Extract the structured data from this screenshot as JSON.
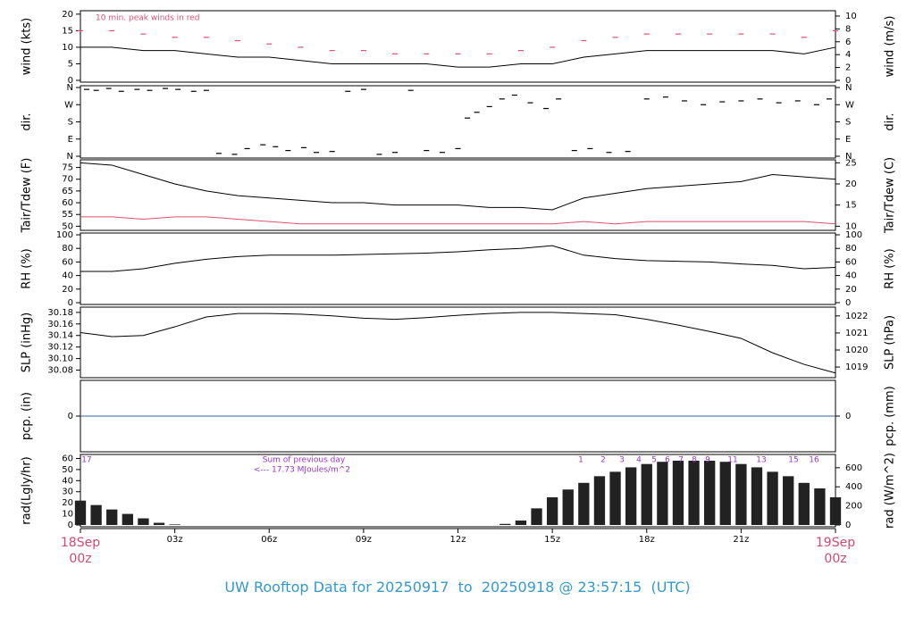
{
  "page_title": "UW Rooftop Data for 20250917  to  20250918 @ 23:57:15  (UTC)",
  "chart_data": [
    {
      "type": "line",
      "y_label": "wind (kts)",
      "y2_label": "wind (m/s)",
      "annotation": "10 min. peak winds in red",
      "ylim": [
        0,
        20.5
      ],
      "yticks": [
        0,
        5,
        10,
        15,
        20
      ],
      "y2lim": [
        0,
        10.55
      ],
      "y2ticks": [
        0,
        2,
        4,
        6,
        8,
        10
      ],
      "x": [
        0,
        1,
        2,
        3,
        4,
        5,
        6,
        7,
        8,
        9,
        10,
        11,
        12,
        13,
        14,
        15,
        16,
        17,
        18,
        19,
        20,
        21,
        22,
        23,
        24
      ],
      "series": [
        {
          "color": "#000000",
          "style": "line",
          "values": [
            10,
            10,
            9,
            9,
            8,
            7,
            7,
            6,
            5,
            5,
            5,
            5,
            4,
            4,
            5,
            5,
            7,
            8,
            9,
            9,
            9,
            9,
            9,
            8,
            10
          ]
        },
        {
          "color": "#e0506e",
          "style": "dash",
          "values": [
            15,
            15,
            14,
            13,
            13,
            12,
            11,
            10,
            9,
            9,
            8,
            8,
            8,
            8,
            9,
            10,
            12,
            13,
            14,
            14,
            14,
            14,
            14,
            13,
            15
          ]
        }
      ]
    },
    {
      "type": "scatter",
      "y_label": "dir.",
      "y2_label": "dir.",
      "ylim": [
        0,
        360
      ],
      "yticks": [
        {
          "value": 0,
          "label": "N"
        },
        {
          "value": 90,
          "label": "E"
        },
        {
          "value": 180,
          "label": "S"
        },
        {
          "value": 270,
          "label": "W"
        },
        {
          "value": 360,
          "label": "N"
        }
      ],
      "y2lim": [
        0,
        360
      ],
      "y2ticks": [
        {
          "value": 0,
          "label": "N"
        },
        {
          "value": 90,
          "label": "E"
        },
        {
          "value": 180,
          "label": "S"
        },
        {
          "value": 270,
          "label": "W"
        },
        {
          "value": 360,
          "label": "N"
        }
      ],
      "x": [
        0.2,
        0.5,
        0.9,
        1.3,
        1.8,
        2.2,
        2.7,
        3.1,
        3.6,
        4.0,
        4.4,
        4.9,
        5.3,
        5.8,
        6.2,
        6.6,
        7.1,
        7.5,
        8.0,
        8.5,
        9.0,
        9.5,
        10.0,
        10.5,
        11.0,
        11.5,
        12.0,
        12.3,
        12.6,
        13.0,
        13.4,
        13.8,
        14.3,
        14.8,
        15.2,
        15.7,
        16.2,
        16.8,
        17.4,
        18.0,
        18.6,
        19.2,
        19.8,
        20.4,
        21.0,
        21.6,
        22.2,
        22.8,
        23.4,
        23.8
      ],
      "series": [
        {
          "color": "#000000",
          "values": [
            350,
            345,
            355,
            340,
            350,
            345,
            355,
            350,
            340,
            345,
            15,
            10,
            40,
            60,
            50,
            30,
            45,
            20,
            25,
            340,
            350,
            10,
            20,
            345,
            30,
            20,
            40,
            200,
            230,
            260,
            300,
            320,
            280,
            250,
            300,
            30,
            40,
            20,
            25,
            300,
            310,
            290,
            270,
            285,
            290,
            300,
            280,
            290,
            270,
            300
          ]
        }
      ]
    },
    {
      "type": "line",
      "y_label": "Tair/Tdew (F)",
      "y2_label": "Tair/Tdew (C)",
      "ylim": [
        49,
        77.5
      ],
      "yticks": [
        50,
        55,
        60,
        65,
        70,
        75
      ],
      "y2lim": [
        9.44,
        25.28
      ],
      "y2ticks": [
        10,
        15,
        20,
        25
      ],
      "x": [
        0,
        1,
        2,
        3,
        4,
        5,
        6,
        7,
        8,
        9,
        10,
        11,
        12,
        13,
        14,
        15,
        16,
        17,
        18,
        19,
        20,
        21,
        22,
        23,
        24
      ],
      "series": [
        {
          "color": "#000000",
          "style": "line",
          "values": [
            77,
            76,
            72,
            68,
            65,
            63,
            62,
            61,
            60,
            60,
            59,
            59,
            59,
            58,
            58,
            57,
            62,
            64,
            66,
            67,
            68,
            69,
            72,
            71,
            70
          ]
        },
        {
          "color": "#e0506e",
          "style": "line",
          "values": [
            54,
            54,
            53,
            54,
            54,
            53,
            52,
            51,
            51,
            51,
            51,
            51,
            51,
            51,
            51,
            51,
            52,
            51,
            52,
            52,
            52,
            52,
            52,
            52,
            51
          ]
        }
      ]
    },
    {
      "type": "line",
      "y_label": "RH (%)",
      "y2_label": "RH (%)",
      "ylim": [
        0,
        100
      ],
      "yticks": [
        0,
        20,
        40,
        60,
        80,
        100
      ],
      "y2lim": [
        0,
        100
      ],
      "y2ticks": [
        0,
        20,
        40,
        60,
        80,
        100
      ],
      "x": [
        0,
        1,
        2,
        3,
        4,
        5,
        6,
        7,
        8,
        9,
        10,
        11,
        12,
        13,
        14,
        15,
        16,
        17,
        18,
        19,
        20,
        21,
        22,
        23,
        24
      ],
      "series": [
        {
          "color": "#000000",
          "style": "line",
          "values": [
            46,
            46,
            50,
            58,
            64,
            68,
            70,
            70,
            70,
            71,
            72,
            73,
            75,
            78,
            80,
            84,
            70,
            65,
            62,
            61,
            60,
            57,
            55,
            50,
            52
          ]
        }
      ]
    },
    {
      "type": "line",
      "y_label": "SLP (inHg)",
      "y2_label": "SLP (hPa)",
      "ylim": [
        30.07,
        30.186
      ],
      "yticks": [
        {
          "value": 30.08,
          "label": "30.08"
        },
        {
          "value": 30.1,
          "label": "30.10"
        },
        {
          "value": 30.12,
          "label": "30.12"
        },
        {
          "value": 30.14,
          "label": "30.14"
        },
        {
          "value": 30.16,
          "label": "30.16"
        },
        {
          "value": 30.18,
          "label": "30.18"
        }
      ],
      "y2lim": [
        1018.48,
        1022.41
      ],
      "y2ticks": [
        1019,
        1020,
        1021,
        1022
      ],
      "x": [
        0,
        1,
        2,
        3,
        4,
        5,
        6,
        7,
        8,
        9,
        10,
        11,
        12,
        13,
        14,
        15,
        16,
        17,
        18,
        19,
        20,
        21,
        22,
        23,
        24
      ],
      "series": [
        {
          "color": "#000000",
          "style": "line",
          "values": [
            30.145,
            30.138,
            30.14,
            30.155,
            30.172,
            30.178,
            30.178,
            30.177,
            30.174,
            30.17,
            30.168,
            30.171,
            30.175,
            30.178,
            30.18,
            30.18,
            30.178,
            30.176,
            30.168,
            30.158,
            30.147,
            30.135,
            30.11,
            30.09,
            30.075
          ]
        }
      ]
    },
    {
      "type": "line",
      "y_label": "pcp. (in)",
      "y2_label": "pcp. (mm)",
      "ylim": [
        -1,
        1
      ],
      "yticks": [
        0
      ],
      "y2lim": [
        -1,
        1
      ],
      "y2ticks": [
        0
      ],
      "x": [
        0,
        24
      ],
      "series": [
        {
          "color": "#3366aa",
          "style": "line",
          "values": [
            0,
            0
          ]
        }
      ]
    },
    {
      "type": "bar",
      "y_label": "rad(Lgly/hr)",
      "y2_label": "rad (W/m^2)",
      "annotations": [
        "17",
        "Sum of previous day",
        "<--- 17.73 MJoules/m^2",
        "1",
        "2",
        "3",
        "4",
        "5",
        "6",
        "7",
        "8",
        "9",
        "11",
        "13",
        "15",
        "16"
      ],
      "ylim": [
        0,
        62
      ],
      "yticks": [
        0,
        10,
        20,
        30,
        40,
        50,
        60
      ],
      "y2lim": [
        0,
        720
      ],
      "y2ticks": [
        0,
        200,
        400,
        600
      ],
      "xlim": [
        0,
        24
      ],
      "xticks": [
        {
          "value": 0,
          "label": "18Sep\n00z"
        },
        {
          "value": 3,
          "label": "03z"
        },
        {
          "value": 6,
          "label": "06z"
        },
        {
          "value": 9,
          "label": "09z"
        },
        {
          "value": 12,
          "label": "12z"
        },
        {
          "value": 15,
          "label": "15z"
        },
        {
          "value": 18,
          "label": "18z"
        },
        {
          "value": 21,
          "label": "21z"
        },
        {
          "value": 24,
          "label": "19Sep\n00z"
        }
      ],
      "x": [
        0,
        0.5,
        1,
        1.5,
        2,
        2.5,
        3,
        3.5,
        4,
        4.5,
        5,
        5.5,
        6,
        6.5,
        7,
        7.5,
        8,
        8.5,
        9,
        9.5,
        10,
        10.5,
        11,
        11.5,
        12,
        12.5,
        13,
        13.5,
        14,
        14.5,
        15,
        15.5,
        16,
        16.5,
        17,
        17.5,
        18,
        18.5,
        19,
        19.5,
        20,
        20.5,
        21,
        21.5,
        22,
        22.5,
        23,
        23.5,
        24
      ],
      "series": [
        {
          "color": "#222222",
          "values": [
            22,
            18,
            14,
            10,
            6,
            2,
            0.5,
            0,
            0,
            0,
            0,
            0,
            0,
            0,
            0,
            0,
            0,
            0,
            0,
            0,
            0,
            0,
            0,
            0,
            0,
            0,
            0,
            1,
            4,
            15,
            25,
            32,
            38,
            44,
            48,
            52,
            55,
            57,
            58,
            58,
            58,
            57,
            55,
            52,
            48,
            44,
            38,
            33,
            25
          ]
        }
      ]
    }
  ]
}
